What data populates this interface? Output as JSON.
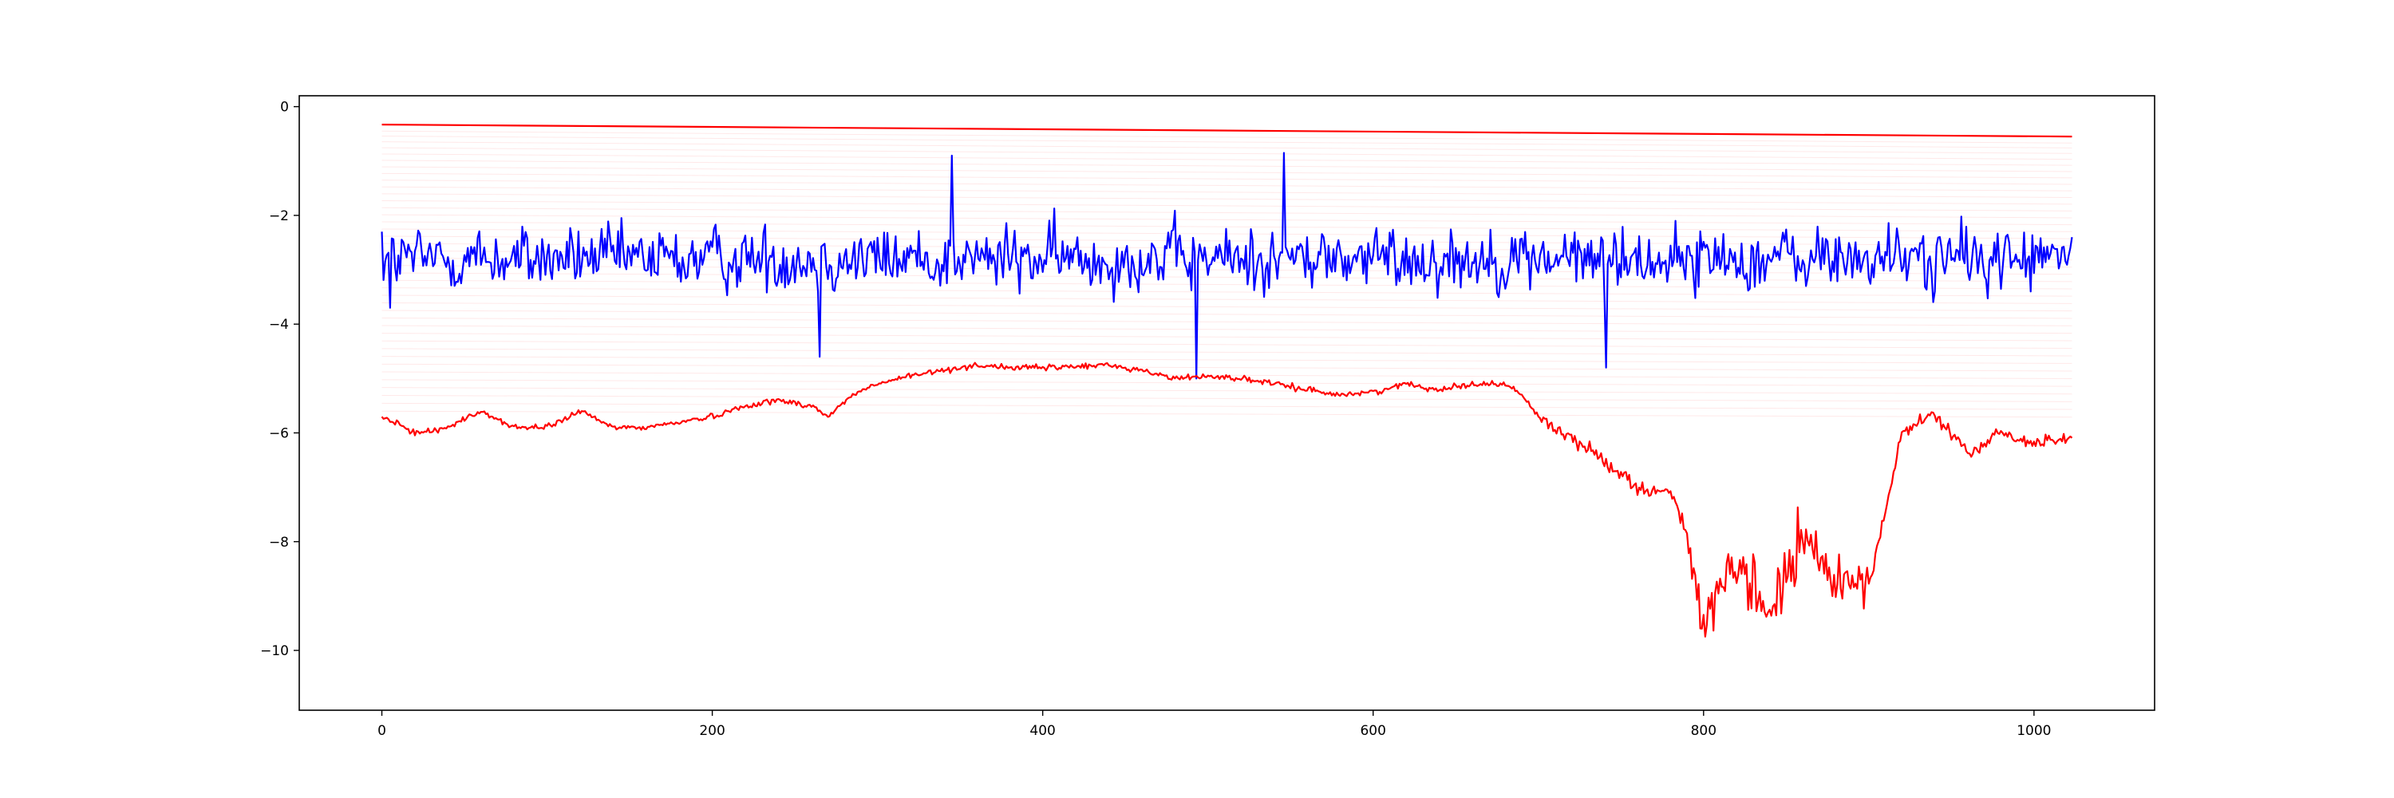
{
  "chart_data": {
    "type": "line",
    "title": "",
    "xlabel": "",
    "ylabel": "",
    "xlim": [
      -50,
      1073
    ],
    "ylim": [
      -11.1,
      0.2
    ],
    "xticks": [
      0,
      200,
      400,
      600,
      800,
      1000
    ],
    "yticks": [
      0,
      -2,
      -4,
      -6,
      -8,
      -10
    ],
    "xtick_labels": [
      "0",
      "200",
      "400",
      "600",
      "800",
      "1000"
    ],
    "ytick_labels": [
      "0",
      "−2",
      "−4",
      "−6",
      "−8",
      "−10"
    ],
    "grid": false,
    "legend": "none",
    "n_points": 1024,
    "series": [
      {
        "color": "#ff0000",
        "style": "straight line, slight downward slope",
        "values_at": {
          "x": [
            0,
            1023
          ],
          "y": [
            -0.33,
            -0.55
          ]
        }
      },
      {
        "color": "#0000ff",
        "style": "noisy series fluctuating around -2.8",
        "mean": -2.8,
        "range": [
          -5.0,
          -0.85
        ],
        "key_points": [
          {
            "x": 0,
            "y": -2.3
          },
          {
            "x": 5,
            "y": -3.7
          },
          {
            "x": 265,
            "y": -4.6
          },
          {
            "x": 345,
            "y": -0.9
          },
          {
            "x": 493,
            "y": -5.0
          },
          {
            "x": 546,
            "y": -0.85
          },
          {
            "x": 741,
            "y": -4.8
          },
          {
            "x": 1023,
            "y": -2.4
          }
        ]
      },
      {
        "color": "#ff0000",
        "style": "slow-varying series with deep dip near x=800-890",
        "x": [
          0,
          20,
          40,
          60,
          80,
          100,
          120,
          140,
          160,
          180,
          200,
          220,
          240,
          260,
          270,
          285,
          300,
          320,
          340,
          360,
          380,
          400,
          420,
          440,
          460,
          480,
          500,
          520,
          540,
          560,
          580,
          600,
          620,
          640,
          660,
          680,
          690,
          700,
          720,
          740,
          760,
          780,
          790,
          800,
          820,
          840,
          860,
          880,
          900,
          910,
          920,
          940,
          960,
          980,
          1000,
          1023
        ],
        "y": [
          -5.7,
          -6.0,
          -5.9,
          -5.6,
          -5.9,
          -5.9,
          -5.6,
          -5.9,
          -5.9,
          -5.8,
          -5.7,
          -5.5,
          -5.4,
          -5.5,
          -5.7,
          -5.3,
          -5.1,
          -4.95,
          -4.85,
          -4.75,
          -4.8,
          -4.8,
          -4.78,
          -4.75,
          -4.85,
          -5.0,
          -4.95,
          -5.0,
          -5.1,
          -5.2,
          -5.3,
          -5.25,
          -5.1,
          -5.2,
          -5.1,
          -5.1,
          -5.3,
          -5.7,
          -6.1,
          -6.5,
          -7.0,
          -7.1,
          -7.8,
          -9.6,
          -8.5,
          -9.3,
          -8.0,
          -8.7,
          -8.7,
          -7.5,
          -6.0,
          -5.65,
          -6.4,
          -6.0,
          -6.2,
          -6.05
        ]
      }
    ],
    "faint_lines": {
      "color": "#ff0000",
      "count": 40,
      "y_start_range": [
        -0.45,
        -5.6
      ],
      "slope": -0.22
    }
  }
}
